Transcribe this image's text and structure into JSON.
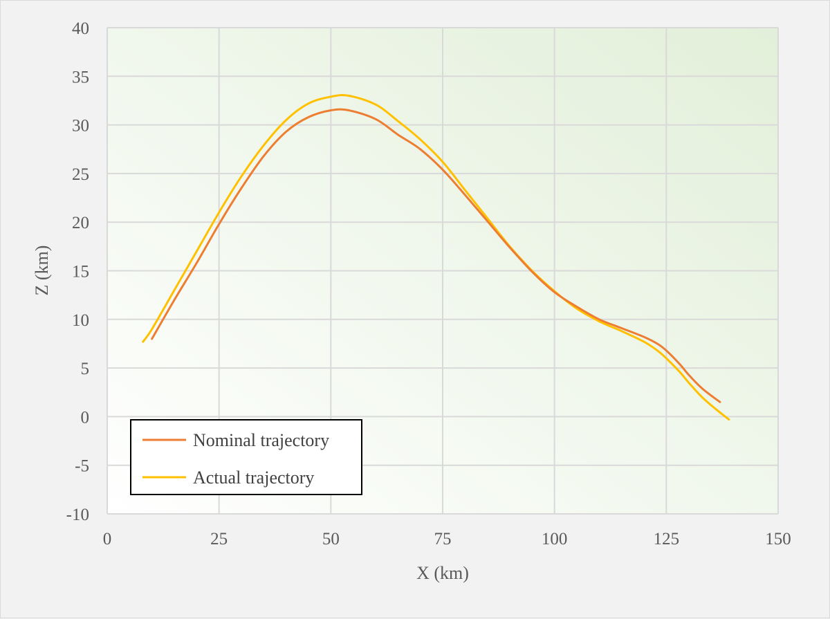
{
  "chart_data": {
    "type": "line",
    "title": "",
    "xlabel": "X (km)",
    "ylabel": "Z (km)",
    "xlim": [
      0,
      150
    ],
    "ylim": [
      -10,
      40
    ],
    "x_ticks": [
      0,
      25,
      50,
      75,
      100,
      125,
      150
    ],
    "y_ticks": [
      -10,
      -5,
      0,
      5,
      10,
      15,
      20,
      25,
      30,
      35,
      40
    ],
    "grid": true,
    "legend_position": "bottom-left",
    "series": [
      {
        "name": "Nominal trajectory",
        "color": "#ed7d31",
        "x": [
          10,
          15,
          20,
          25,
          30,
          35,
          40,
          45,
          50,
          54,
          60,
          65,
          70,
          75,
          80,
          85,
          90,
          95,
          100,
          105,
          110,
          115,
          120,
          123,
          125,
          128,
          130,
          133,
          137
        ],
        "y": [
          8.0,
          12.0,
          15.8,
          19.8,
          23.5,
          26.8,
          29.3,
          30.8,
          31.5,
          31.5,
          30.6,
          29.0,
          27.5,
          25.4,
          22.8,
          20.1,
          17.4,
          14.9,
          12.8,
          11.3,
          10.0,
          9.1,
          8.2,
          7.5,
          6.8,
          5.4,
          4.3,
          2.9,
          1.5
        ]
      },
      {
        "name": "Actual trajectory",
        "color": "#ffc000",
        "x": [
          8,
          10,
          15,
          20,
          25,
          30,
          35,
          40,
          45,
          50,
          54,
          60,
          65,
          70,
          75,
          80,
          85,
          90,
          95,
          100,
          105,
          110,
          115,
          120,
          123,
          125,
          128,
          130,
          133,
          136,
          139
        ],
        "y": [
          7.7,
          9.0,
          13.0,
          17.0,
          21.0,
          24.7,
          27.9,
          30.5,
          32.2,
          32.9,
          33.0,
          32.1,
          30.4,
          28.5,
          26.2,
          23.3,
          20.4,
          17.5,
          15.0,
          12.9,
          11.1,
          9.8,
          8.8,
          7.7,
          6.8,
          6.0,
          4.6,
          3.5,
          2.0,
          0.8,
          -0.3
        ]
      }
    ]
  }
}
